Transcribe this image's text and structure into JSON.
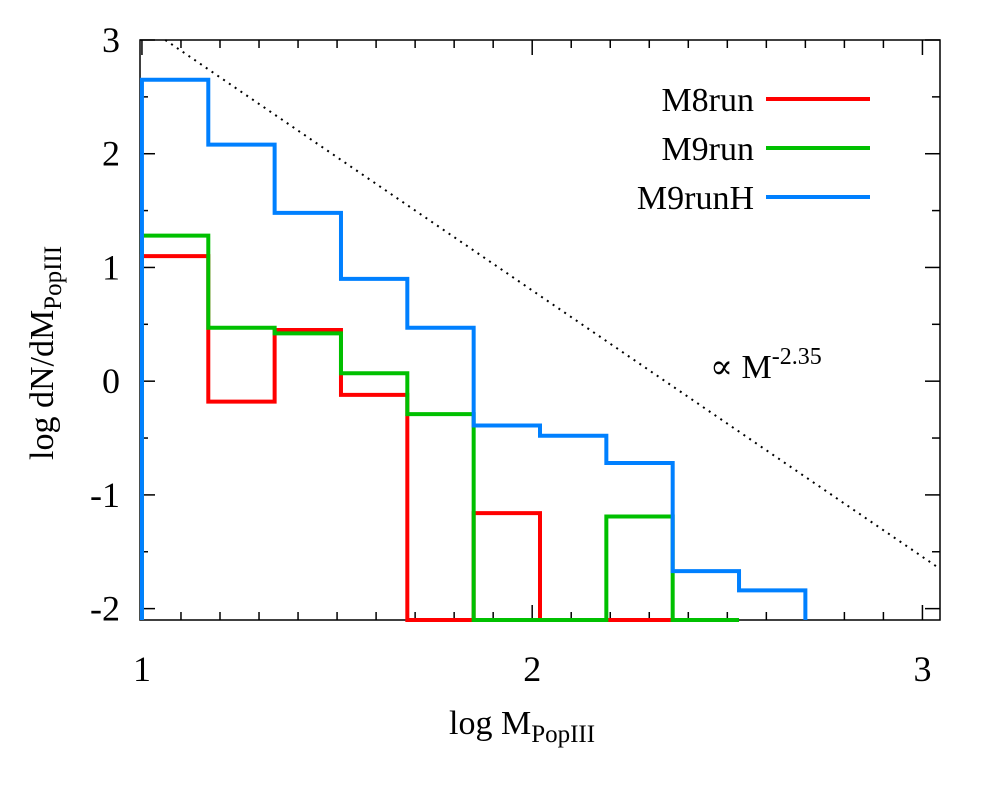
{
  "chart_data": {
    "type": "line",
    "subtype": "step-histogram",
    "title": "",
    "xlabel_main": "log M",
    "xlabel_sub": "PopIII",
    "ylabel_main": "log dN/dM",
    "ylabel_sub": "PopIII",
    "xlim": [
      0.995,
      3.045
    ],
    "ylim": [
      -2.1,
      3.0
    ],
    "xticks": [
      1,
      2,
      3
    ],
    "xtick_labels": [
      "1",
      "2",
      "3"
    ],
    "yticks": [
      -2,
      -1,
      0,
      1,
      2,
      3
    ],
    "ytick_labels": [
      "-2",
      "-1",
      "0",
      "1",
      "2",
      "3"
    ],
    "x_minor_step": 0.1,
    "y_minor_step": 0.5,
    "grid": false,
    "legend_position": "top-right",
    "series": [
      {
        "name": "M8run",
        "color": "#ff0000",
        "x": [
          1.0,
          1.0,
          1.17,
          1.17,
          1.34,
          1.34,
          1.51,
          1.51,
          1.68,
          1.68,
          1.85,
          1.85,
          2.02,
          2.02,
          2.19,
          2.19,
          2.36,
          2.36,
          2.53
        ],
        "y": [
          -2.1,
          1.1,
          1.1,
          -0.18,
          -0.18,
          0.45,
          0.45,
          -0.12,
          -0.12,
          -2.1,
          -2.1,
          -1.16,
          -1.16,
          -2.1,
          -2.1,
          -2.1,
          -2.1,
          -2.1,
          -2.1
        ]
      },
      {
        "name": "M9run",
        "color": "#00c000",
        "x": [
          1.0,
          1.0,
          1.17,
          1.17,
          1.34,
          1.34,
          1.51,
          1.51,
          1.68,
          1.68,
          1.85,
          1.85,
          2.02,
          2.02,
          2.19,
          2.19,
          2.36,
          2.36,
          2.53,
          2.53
        ],
        "y": [
          -2.1,
          1.28,
          1.28,
          0.47,
          0.47,
          0.42,
          0.42,
          0.07,
          0.07,
          -0.29,
          -0.29,
          -2.1,
          -2.1,
          -2.1,
          -2.1,
          -1.19,
          -1.19,
          -2.1,
          -2.1,
          -2.1
        ]
      },
      {
        "name": "M9runH",
        "color": "#0080ff",
        "x": [
          1.0,
          1.0,
          1.17,
          1.17,
          1.34,
          1.34,
          1.51,
          1.51,
          1.68,
          1.68,
          1.85,
          1.85,
          2.02,
          2.02,
          2.19,
          2.19,
          2.36,
          2.36,
          2.53,
          2.53,
          2.7,
          2.7
        ],
        "y": [
          -2.1,
          2.65,
          2.65,
          2.08,
          2.08,
          1.48,
          1.48,
          0.9,
          0.9,
          0.47,
          0.47,
          -0.39,
          -0.39,
          -0.48,
          -0.48,
          -0.72,
          -0.72,
          -1.67,
          -1.67,
          -1.84,
          -1.84,
          -2.1
        ]
      }
    ],
    "reference_line": {
      "label_prefix": "∝ M",
      "label_exponent": "-2.35",
      "slope": -2.35,
      "x": [
        1.06,
        3.045
      ],
      "y": [
        3.0,
        -1.65
      ],
      "style": "dotted",
      "color": "#000000"
    }
  }
}
